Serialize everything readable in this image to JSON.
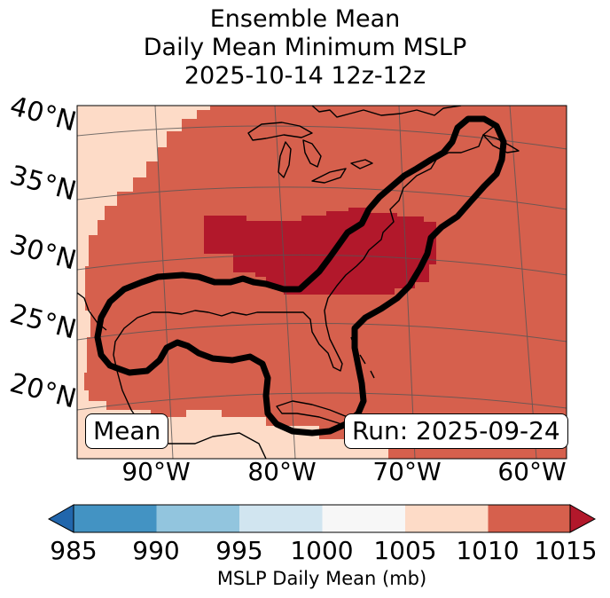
{
  "title": {
    "line1": "Ensemble Mean",
    "line2": "Daily Mean Minimum MSLP",
    "line3": "2025-10-14 12z-12z"
  },
  "map": {
    "region": "Eastern United States, Gulf of Mexico and Western Atlantic",
    "lat_labels": [
      "40°N",
      "35°N",
      "30°N",
      "25°N",
      "20°N"
    ],
    "lon_labels": [
      "90°W",
      "80°W",
      "70°W",
      "60°W"
    ],
    "mean_label": "Mean",
    "run_label": "Run: 2025-09-24",
    "contour_note": "black contour outlines ensemble low-pressure track region"
  },
  "colorbar": {
    "title": "MSLP Daily Mean (mb)",
    "ticks": [
      "985",
      "990",
      "995",
      "1000",
      "1005",
      "1010",
      "1015"
    ],
    "bins": [
      {
        "range": "<985",
        "color": "#2166ac"
      },
      {
        "range": "985-990",
        "color": "#4393c3"
      },
      {
        "range": "990-995",
        "color": "#92c5de"
      },
      {
        "range": "995-1000",
        "color": "#d1e5f0"
      },
      {
        "range": "1000-1005",
        "color": "#f7f7f7"
      },
      {
        "range": "1005-1010",
        "color": "#fddbc7"
      },
      {
        "range": "1010-1015",
        "color": "#d6604d"
      },
      {
        "range": ">1015",
        "color": "#b2182b"
      }
    ]
  }
}
